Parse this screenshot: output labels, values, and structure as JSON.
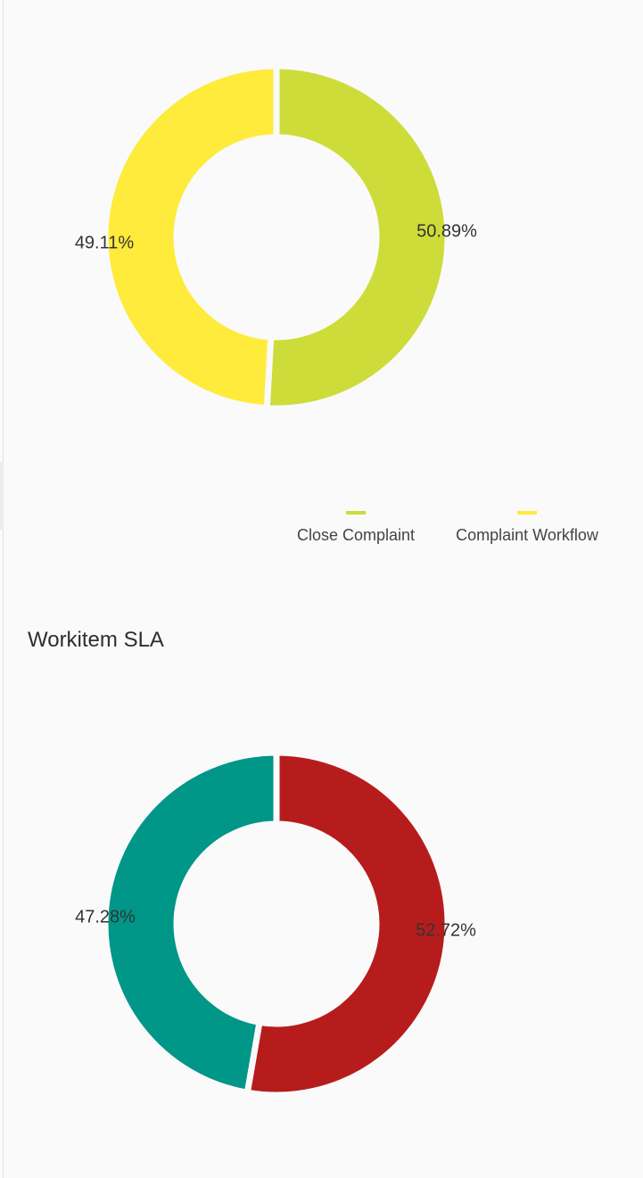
{
  "colors": {
    "close_complaint": "#cddc39",
    "complaint_workflow": "#ffeb3b",
    "sla_red": "#b71c1c",
    "sla_teal": "#009688"
  },
  "legend": {
    "items": [
      {
        "label": "Close Complaint",
        "color": "#cddc39"
      },
      {
        "label": "Complaint Workflow",
        "color": "#ffeb3b"
      }
    ]
  },
  "workitem_sla": {
    "title": "Workitem SLA"
  },
  "chart_data": [
    {
      "type": "pie",
      "donut": true,
      "slices": [
        {
          "name": "Close Complaint",
          "value": 50.89,
          "label": "50.89%",
          "color": "#cddc39"
        },
        {
          "name": "Complaint Workflow",
          "value": 49.11,
          "label": "49.11%",
          "color": "#ffeb3b"
        }
      ],
      "legend_position": "bottom-right"
    },
    {
      "type": "pie",
      "donut": true,
      "title": "Workitem SLA",
      "slices": [
        {
          "value": 52.72,
          "label": "52.72%",
          "color": "#b71c1c"
        },
        {
          "value": 47.28,
          "label": "47.28%",
          "color": "#009688"
        }
      ]
    }
  ]
}
